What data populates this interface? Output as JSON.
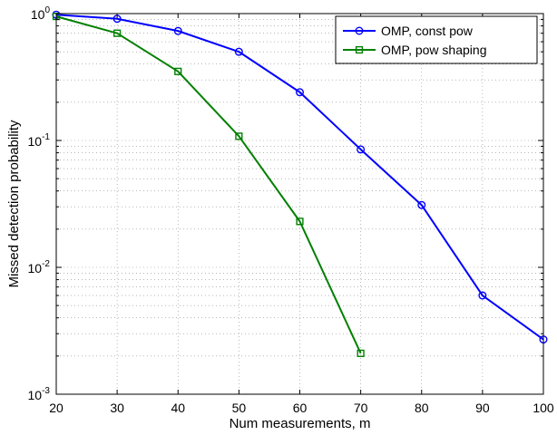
{
  "chart_data": {
    "type": "line",
    "title": "",
    "xlabel": "Num measurements, m",
    "ylabel": "Missed detection probability",
    "xlim": [
      20,
      100
    ],
    "ylim": [
      0.001,
      1
    ],
    "yscale": "log",
    "grid": true,
    "legend_position": "top-right",
    "x_ticks": [
      20,
      30,
      40,
      50,
      60,
      70,
      80,
      90,
      100
    ],
    "y_ticks": [
      {
        "value": 1,
        "base": "10",
        "exp": "0"
      },
      {
        "value": 0.1,
        "base": "10",
        "exp": "-1"
      },
      {
        "value": 0.01,
        "base": "10",
        "exp": "-2"
      },
      {
        "value": 0.001,
        "base": "10",
        "exp": "-3"
      }
    ],
    "series": [
      {
        "name": "OMP, const pow",
        "color": "#0000ff",
        "marker": "circle",
        "x": [
          20,
          30,
          40,
          50,
          60,
          70,
          80,
          90,
          100
        ],
        "y": [
          0.98,
          0.91,
          0.73,
          0.5,
          0.24,
          0.085,
          0.031,
          0.006,
          0.0027
        ]
      },
      {
        "name": "OMP, pow shaping",
        "color": "#008000",
        "marker": "square",
        "x": [
          20,
          30,
          40,
          50,
          60,
          70
        ],
        "y": [
          0.95,
          0.7,
          0.35,
          0.108,
          0.023,
          0.0021
        ]
      }
    ]
  }
}
